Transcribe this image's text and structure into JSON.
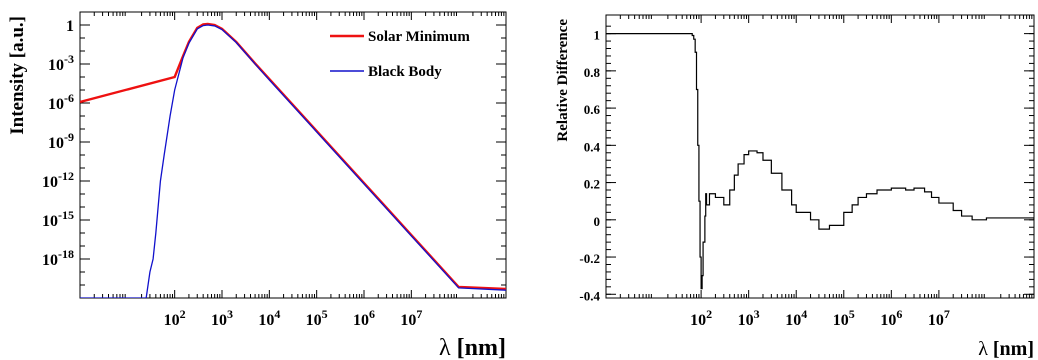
{
  "chart_data": [
    {
      "type": "line",
      "xlabel_symbol": "λ",
      "xlabel_unit": "[nm]",
      "ylabel": "Intensity [a.u.]",
      "x_scale": "log",
      "y_scale": "log",
      "xlim": [
        1,
        1000000000
      ],
      "ylim": [
        1e-21,
        10
      ],
      "x_ticks": [
        {
          "value": 100,
          "base": "10",
          "exp": "2"
        },
        {
          "value": 1000,
          "base": "10",
          "exp": "3"
        },
        {
          "value": 10000,
          "base": "10",
          "exp": "4"
        },
        {
          "value": 100000,
          "base": "10",
          "exp": "5"
        },
        {
          "value": 1000000,
          "base": "10",
          "exp": "6"
        },
        {
          "value": 10000000,
          "base": "10",
          "exp": "7"
        }
      ],
      "y_ticks": [
        {
          "value": 1,
          "base": "1",
          "exp": ""
        },
        {
          "value": 0.001,
          "base": "10",
          "exp": "-3"
        },
        {
          "value": 1e-06,
          "base": "10",
          "exp": "-6"
        },
        {
          "value": 1e-09,
          "base": "10",
          "exp": "-9"
        },
        {
          "value": 1e-12,
          "base": "10",
          "exp": "-12"
        },
        {
          "value": 1e-15,
          "base": "10",
          "exp": "-15"
        },
        {
          "value": 1e-18,
          "base": "10",
          "exp": "-18"
        }
      ],
      "legend_position": "top-right",
      "grid": false,
      "series": [
        {
          "name": "Solar Minimum",
          "color": "#ee1111",
          "x": [
            1,
            100,
            150,
            200,
            300,
            400,
            500,
            700,
            1000,
            2000,
            5000,
            10000,
            100000,
            1000000,
            10000000,
            100000000,
            1000000000
          ],
          "y": [
            1.2e-06,
            0.0001,
            0.004,
            0.05,
            0.6,
            1.1,
            1.2,
            1.0,
            0.5,
            0.05,
            0.0011,
            7e-05,
            7e-09,
            7e-13,
            7e-17,
            7e-21,
            5e-21
          ]
        },
        {
          "name": "Black Body",
          "color": "#1111cc",
          "x": [
            1,
            25,
            30,
            35,
            40,
            50,
            60,
            80,
            100,
            150,
            200,
            300,
            400,
            500,
            700,
            1000,
            2000,
            5000,
            10000,
            100000,
            1000000,
            10000000,
            100000000,
            1000000000
          ],
          "y": [
            1e-21,
            1e-21,
            1e-19,
            1e-18,
            1e-16,
            1e-12,
            1e-10,
            1e-07,
            1e-05,
            0.003,
            0.04,
            0.5,
            0.9,
            1.0,
            0.85,
            0.45,
            0.045,
            0.001,
            6e-05,
            6e-09,
            6e-13,
            6e-17,
            6e-21,
            4e-21
          ]
        }
      ]
    },
    {
      "type": "line",
      "xlabel_symbol": "λ",
      "xlabel_unit": "[nm]",
      "ylabel": "Relative Difference",
      "x_scale": "log",
      "xlim": [
        1,
        1000000000
      ],
      "ylim": [
        -0.42,
        1.1
      ],
      "x_ticks": [
        {
          "value": 100,
          "base": "10",
          "exp": "2"
        },
        {
          "value": 1000,
          "base": "10",
          "exp": "3"
        },
        {
          "value": 10000,
          "base": "10",
          "exp": "4"
        },
        {
          "value": 100000,
          "base": "10",
          "exp": "5"
        },
        {
          "value": 1000000,
          "base": "10",
          "exp": "6"
        },
        {
          "value": 10000000,
          "base": "10",
          "exp": "7"
        }
      ],
      "y_ticks": [
        {
          "value": 1,
          "label": "1"
        },
        {
          "value": 0.8,
          "label": "0.8"
        },
        {
          "value": 0.6,
          "label": "0.6"
        },
        {
          "value": 0.4,
          "label": "0.4"
        },
        {
          "value": 0.2,
          "label": "0.2"
        },
        {
          "value": 0,
          "label": "0"
        },
        {
          "value": -0.2,
          "label": "-0.2"
        },
        {
          "value": -0.4,
          "label": "-0.4"
        }
      ],
      "grid": false,
      "series": [
        {
          "color": "#000000",
          "x": [
            1,
            60,
            65,
            70,
            75,
            80,
            85,
            90,
            95,
            100,
            105,
            110,
            120,
            125,
            130,
            150,
            200,
            300,
            400,
            500,
            600,
            800,
            1000,
            1500,
            2000,
            3000,
            5000,
            8000,
            10000,
            20000,
            30000,
            50000,
            100000,
            150000,
            200000,
            300000,
            500000,
            1000000,
            2000000,
            3000000,
            5000000,
            7000000,
            10000000,
            20000000,
            30000000,
            50000000,
            100000000,
            1000000000
          ],
          "y": [
            1.0,
            1.0,
            0.99,
            0.97,
            0.9,
            0.7,
            0.4,
            0.1,
            -0.2,
            -0.37,
            -0.3,
            -0.12,
            0.02,
            0.14,
            0.08,
            0.14,
            0.12,
            0.08,
            0.16,
            0.24,
            0.3,
            0.35,
            0.37,
            0.36,
            0.32,
            0.25,
            0.16,
            0.08,
            0.04,
            0.0,
            -0.05,
            -0.03,
            0.04,
            0.08,
            0.12,
            0.14,
            0.16,
            0.17,
            0.16,
            0.17,
            0.15,
            0.12,
            0.09,
            0.05,
            0.02,
            0.0,
            0.01,
            0.0
          ]
        }
      ]
    }
  ]
}
